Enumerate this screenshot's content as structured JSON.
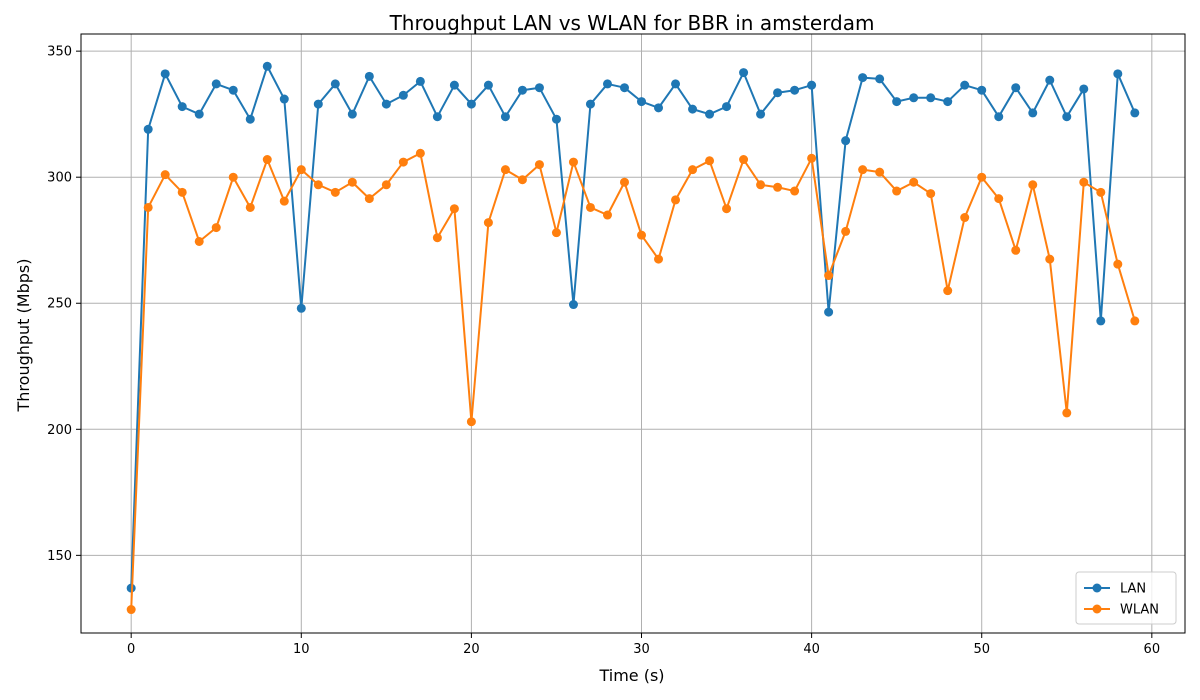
{
  "chart_data": {
    "type": "line",
    "title": "Throughput LAN vs WLAN for BBR in amsterdam",
    "xlabel": "Time (s)",
    "ylabel": "Throughput (Mbps)",
    "xlim": [
      -2.95,
      61.95
    ],
    "ylim": [
      119.2,
      356.8
    ],
    "xticks": [
      0,
      10,
      20,
      30,
      40,
      50,
      60
    ],
    "yticks": [
      150,
      200,
      250,
      300,
      350
    ],
    "grid": true,
    "legend_position": "lower-right",
    "x": [
      0,
      1,
      2,
      3,
      4,
      5,
      6,
      7,
      8,
      9,
      10,
      11,
      12,
      13,
      14,
      15,
      16,
      17,
      18,
      19,
      20,
      21,
      22,
      23,
      24,
      25,
      26,
      27,
      28,
      29,
      30,
      31,
      32,
      33,
      34,
      35,
      36,
      37,
      38,
      39,
      40,
      41,
      42,
      43,
      44,
      45,
      46,
      47,
      48,
      49,
      50,
      51,
      52,
      53,
      54,
      55,
      56,
      57,
      58,
      59
    ],
    "series": [
      {
        "name": "LAN",
        "color": "#1f77b4",
        "values": [
          137,
          319,
          341,
          328,
          325,
          337,
          334.5,
          323,
          344,
          331,
          248,
          329,
          337,
          325,
          340,
          329,
          332.5,
          338,
          324,
          336.5,
          329,
          336.5,
          324,
          334.5,
          335.5,
          323,
          249.5,
          329,
          337,
          335.5,
          330,
          327.5,
          337,
          327,
          325,
          328,
          341.5,
          325,
          333.5,
          334.5,
          336.5,
          246.5,
          314.5,
          339.5,
          339,
          330,
          331.5,
          331.5,
          330,
          336.5,
          334.5,
          324,
          335.5,
          325.5,
          338.5,
          324,
          335,
          243,
          341,
          325.5
        ]
      },
      {
        "name": "WLAN",
        "color": "#ff7f0e",
        "values": [
          128.5,
          288,
          301,
          294,
          274.5,
          280,
          300,
          288,
          307,
          290.5,
          303,
          297,
          294,
          298,
          291.5,
          297,
          306,
          309.5,
          276,
          287.5,
          203,
          282,
          303,
          299,
          305,
          278,
          306,
          288,
          285,
          298,
          277,
          267.5,
          291,
          303,
          306.5,
          287.5,
          307,
          297,
          296,
          294.5,
          307.5,
          261,
          278.5,
          303,
          302,
          294.5,
          298,
          293.5,
          255,
          284,
          300,
          291.5,
          271,
          297,
          267.5,
          206.5,
          298,
          294,
          265.5,
          243
        ]
      }
    ]
  }
}
